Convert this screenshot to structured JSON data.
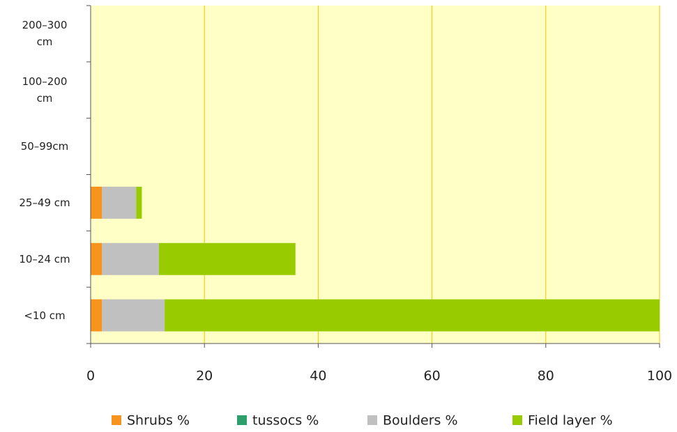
{
  "chart_data": {
    "type": "bar",
    "orientation": "horizontal",
    "stacked": true,
    "categories": [
      "<10 cm",
      "10–24 cm",
      "25–49 cm",
      "50–99cm",
      "100–200 cm",
      "200–300 cm"
    ],
    "series": [
      {
        "name": "Shrubs %",
        "color": "#f7941d",
        "values": [
          2,
          2,
          2,
          0,
          0,
          0
        ]
      },
      {
        "name": "tussocs %",
        "color": "#2e9e6b",
        "values": [
          0,
          0,
          0,
          0,
          0,
          0
        ]
      },
      {
        "name": "Boulders %",
        "color": "#c0c0c0",
        "values": [
          11,
          10,
          6,
          0,
          0,
          0
        ]
      },
      {
        "name": "Field layer %",
        "color": "#99cc00",
        "values": [
          87,
          24,
          1,
          0,
          0,
          0
        ]
      }
    ],
    "xlim": [
      0,
      100
    ],
    "xticks": [
      0,
      20,
      40,
      60,
      80,
      100
    ],
    "grid": true,
    "legend": "bottom"
  }
}
